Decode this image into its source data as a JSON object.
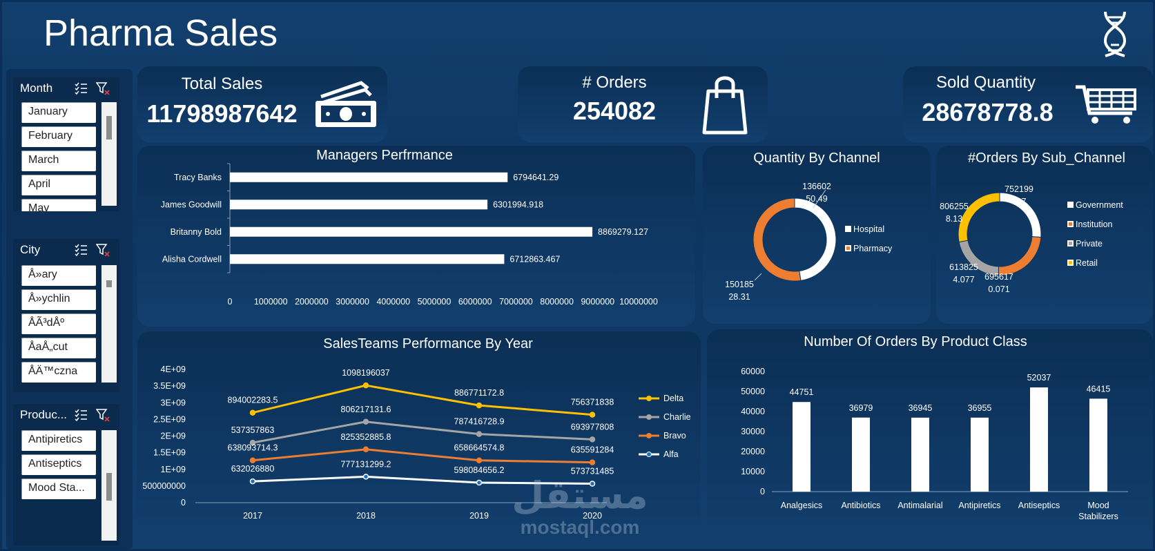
{
  "header": {
    "title": "Pharma Sales"
  },
  "slicers": {
    "month": {
      "title": "Month",
      "items": [
        "January",
        "February",
        "March",
        "April",
        "May"
      ]
    },
    "city": {
      "title": "City",
      "items": [
        "Å»ary",
        "Å»ychlin",
        "ÅÃ³dÅº",
        "ÅaÅ„cut",
        "ÅÄ™czna"
      ]
    },
    "product": {
      "title": "Produc...",
      "items": [
        "Antipiretics",
        "Antiseptics",
        "Mood Sta..."
      ]
    }
  },
  "kpis": {
    "total_sales": {
      "label": "Total Sales",
      "value": "11798987642",
      "icon": "money-icon"
    },
    "orders": {
      "label": "# Orders",
      "value": "254082",
      "icon": "shopping-bag-icon"
    },
    "sold_quantity": {
      "label": "Sold Quantity",
      "value": "28678778.8",
      "icon": "cart-icon"
    }
  },
  "watermark": {
    "arabic": "مستقل",
    "latin": "mostaql.com"
  },
  "chart_data": [
    {
      "id": "managers",
      "type": "bar",
      "orientation": "horizontal",
      "title": "Managers Perfrmance",
      "categories": [
        "Tracy Banks",
        "James Goodwill",
        "Britanny Bold",
        "Alisha Cordwell"
      ],
      "values": [
        6794641.29,
        6301994.918,
        8869279.127,
        6712863.467
      ],
      "labels": [
        "6794641.29",
        "6301994.918",
        "8869279.127",
        "6712863.467"
      ],
      "xlim": [
        0,
        10000000
      ],
      "xticks": [
        "0",
        "1000000",
        "2000000",
        "3000000",
        "4000000",
        "5000000",
        "6000000",
        "7000000",
        "8000000",
        "9000000",
        "10000000"
      ],
      "bar_color": "#ffffff"
    },
    {
      "id": "channel",
      "type": "pie",
      "variant": "donut",
      "title": "Quantity By Channel",
      "categories": [
        "Hospital",
        "Pharmacy"
      ],
      "values": [
        136602,
        150185
      ],
      "label_lines": [
        [
          "136602",
          "50.49"
        ],
        [
          "150185",
          "28.31"
        ]
      ],
      "colors": [
        "#ffffff",
        "#ed7d31"
      ],
      "legend": "right"
    },
    {
      "id": "subchannel",
      "type": "pie",
      "variant": "donut",
      "title": "#Orders By Sub_Channel",
      "categories": [
        "Government",
        "Institution",
        "Private",
        "Retail"
      ],
      "values": [
        752199,
        695617,
        613825,
        806255
      ],
      "label_lines": [
        [
          "752199",
          "417"
        ],
        [
          "695617",
          "0.071"
        ],
        [
          "613825",
          "4.077"
        ],
        [
          "806255",
          "8.13"
        ]
      ],
      "colors": [
        "#ffffff",
        "#ed7d31",
        "#a5a5a5",
        "#ffc000"
      ],
      "legend": "right"
    },
    {
      "id": "salesteams",
      "type": "line",
      "title": "SalesTeams Performance By Year",
      "x": [
        "2017",
        "2018",
        "2019",
        "2020"
      ],
      "ylim": [
        0,
        4000000000
      ],
      "yticks": [
        "0",
        "500000000",
        "1E+09",
        "1.5E+09",
        "2E+09",
        "2.5E+09",
        "3E+09",
        "3.5E+09",
        "4E+09"
      ],
      "series": [
        {
          "name": "Delta",
          "color": "#ffc000",
          "values": [
            2700000000,
            3520000000,
            2920000000,
            2640000000
          ],
          "labels": [
            "894002283.5",
            "1098196037",
            "886771172.8",
            "756371838"
          ]
        },
        {
          "name": "Charlie",
          "color": "#a5a5a5",
          "values": [
            1800000000,
            2430000000,
            2060000000,
            1900000000
          ],
          "labels": [
            "537357863",
            "806217131.6",
            "787416728.9",
            "693977808"
          ]
        },
        {
          "name": "Bravo",
          "color": "#ed7d31",
          "values": [
            1270000000,
            1600000000,
            1270000000,
            1210000000
          ],
          "labels": [
            "638093714.3",
            "825352885.8",
            "658664574.8",
            "635591284"
          ]
        },
        {
          "name": "Alfa",
          "color": "#ffffff",
          "values": [
            640000000,
            780000000,
            600000000,
            570000000
          ],
          "labels": [
            "632026880",
            "777131299.2",
            "598084656.2",
            "573731485"
          ]
        }
      ],
      "legend": "right"
    },
    {
      "id": "productclass",
      "type": "bar",
      "title": "Number Of Orders By Product Class",
      "categories": [
        "Analgesics",
        "Antibiotics",
        "Antimalarial",
        "Antipiretics",
        "Antiseptics",
        "Mood Stabilizers"
      ],
      "category_lines": [
        [
          "Analgesics"
        ],
        [
          "Antibiotics"
        ],
        [
          "Antimalarial"
        ],
        [
          "Antipiretics"
        ],
        [
          "Antiseptics"
        ],
        [
          "Mood",
          "Stabilizers"
        ]
      ],
      "values": [
        44751,
        36979,
        36945,
        36955,
        52037,
        46415
      ],
      "ylim": [
        0,
        60000
      ],
      "yticks": [
        "0",
        "10000",
        "20000",
        "30000",
        "40000",
        "50000",
        "60000"
      ],
      "bar_color": "#ffffff"
    }
  ]
}
